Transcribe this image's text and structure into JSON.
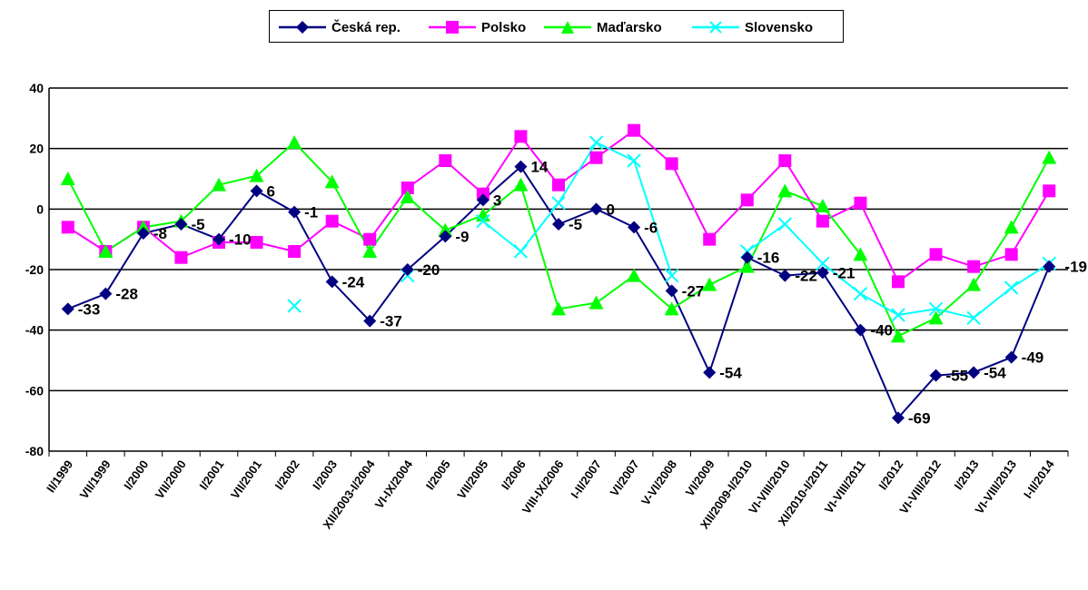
{
  "chart_data": {
    "type": "line",
    "title": "",
    "xlabel": "",
    "ylabel": "",
    "ylim": [
      -80,
      40
    ],
    "yticks": [
      40,
      20,
      0,
      -20,
      -40,
      -60,
      -80
    ],
    "grid": true,
    "legend_position": "top",
    "categories": [
      "II/1999",
      "VII/1999",
      "I/2000",
      "VII/2000",
      "I/2001",
      "VII/2001",
      "I/2002",
      "I/2003",
      "XII/2003-I/2004",
      "VI-IX/2004",
      "I/2005",
      "VII/2005",
      "I/2006",
      "VIII-IX/2006",
      "I-II/2007",
      "VI/2007",
      "V-VI/2008",
      "VI/2009",
      "XII/2009-I/2010",
      "VI-VIII/2010",
      "XI/2010-I/2011",
      "VI-VIII/2011",
      "I/2012",
      "VI-VIII/2012",
      "I/2013",
      "VI-VIII/2013",
      "I-II/2014"
    ],
    "series": [
      {
        "name": "Česká rep.",
        "color": "#000080",
        "marker": "diamond",
        "values": [
          -33,
          -28,
          -8,
          -5,
          -10,
          6,
          -1,
          -24,
          -37,
          -20,
          -9,
          3,
          14,
          -5,
          0,
          -6,
          -27,
          -54,
          -16,
          -22,
          -21,
          -40,
          -69,
          -55,
          -54,
          -49,
          -19
        ],
        "labels": [
          "-33",
          "-28",
          "-8",
          "-5",
          "-10",
          "6",
          "-1",
          "-24",
          "-37",
          "-20",
          "-9",
          "3",
          "14",
          "-5",
          "0",
          "-6",
          "-27",
          "-54",
          "-16",
          "-22",
          "-21",
          "-40",
          "-69",
          "-55",
          "-54",
          "-49",
          "-19"
        ]
      },
      {
        "name": "Polsko",
        "color": "#ff00ff",
        "marker": "square",
        "values": [
          -6,
          -14,
          -6,
          -16,
          -11,
          -11,
          -14,
          -4,
          -10,
          7,
          16,
          5,
          24,
          8,
          17,
          26,
          15,
          -10,
          3,
          16,
          -4,
          2,
          -24,
          -15,
          -19,
          -15,
          6
        ]
      },
      {
        "name": "Maďarsko",
        "color": "#00ff00",
        "marker": "triangle",
        "values": [
          10,
          -14,
          -6,
          -4,
          8,
          11,
          22,
          9,
          -14,
          4,
          -7,
          -2,
          8,
          -33,
          -31,
          -22,
          -33,
          -25,
          -19,
          6,
          1,
          -15,
          -42,
          -36,
          -25,
          -6,
          17
        ]
      },
      {
        "name": "Slovensko",
        "color": "#00ffff",
        "marker": "x",
        "values": [
          null,
          null,
          null,
          null,
          null,
          null,
          -32,
          null,
          null,
          -22,
          null,
          -4,
          -14,
          2,
          22,
          16,
          -22,
          null,
          -14,
          -5,
          -18,
          -28,
          -35,
          -33,
          -36,
          -26,
          -18
        ]
      }
    ]
  }
}
